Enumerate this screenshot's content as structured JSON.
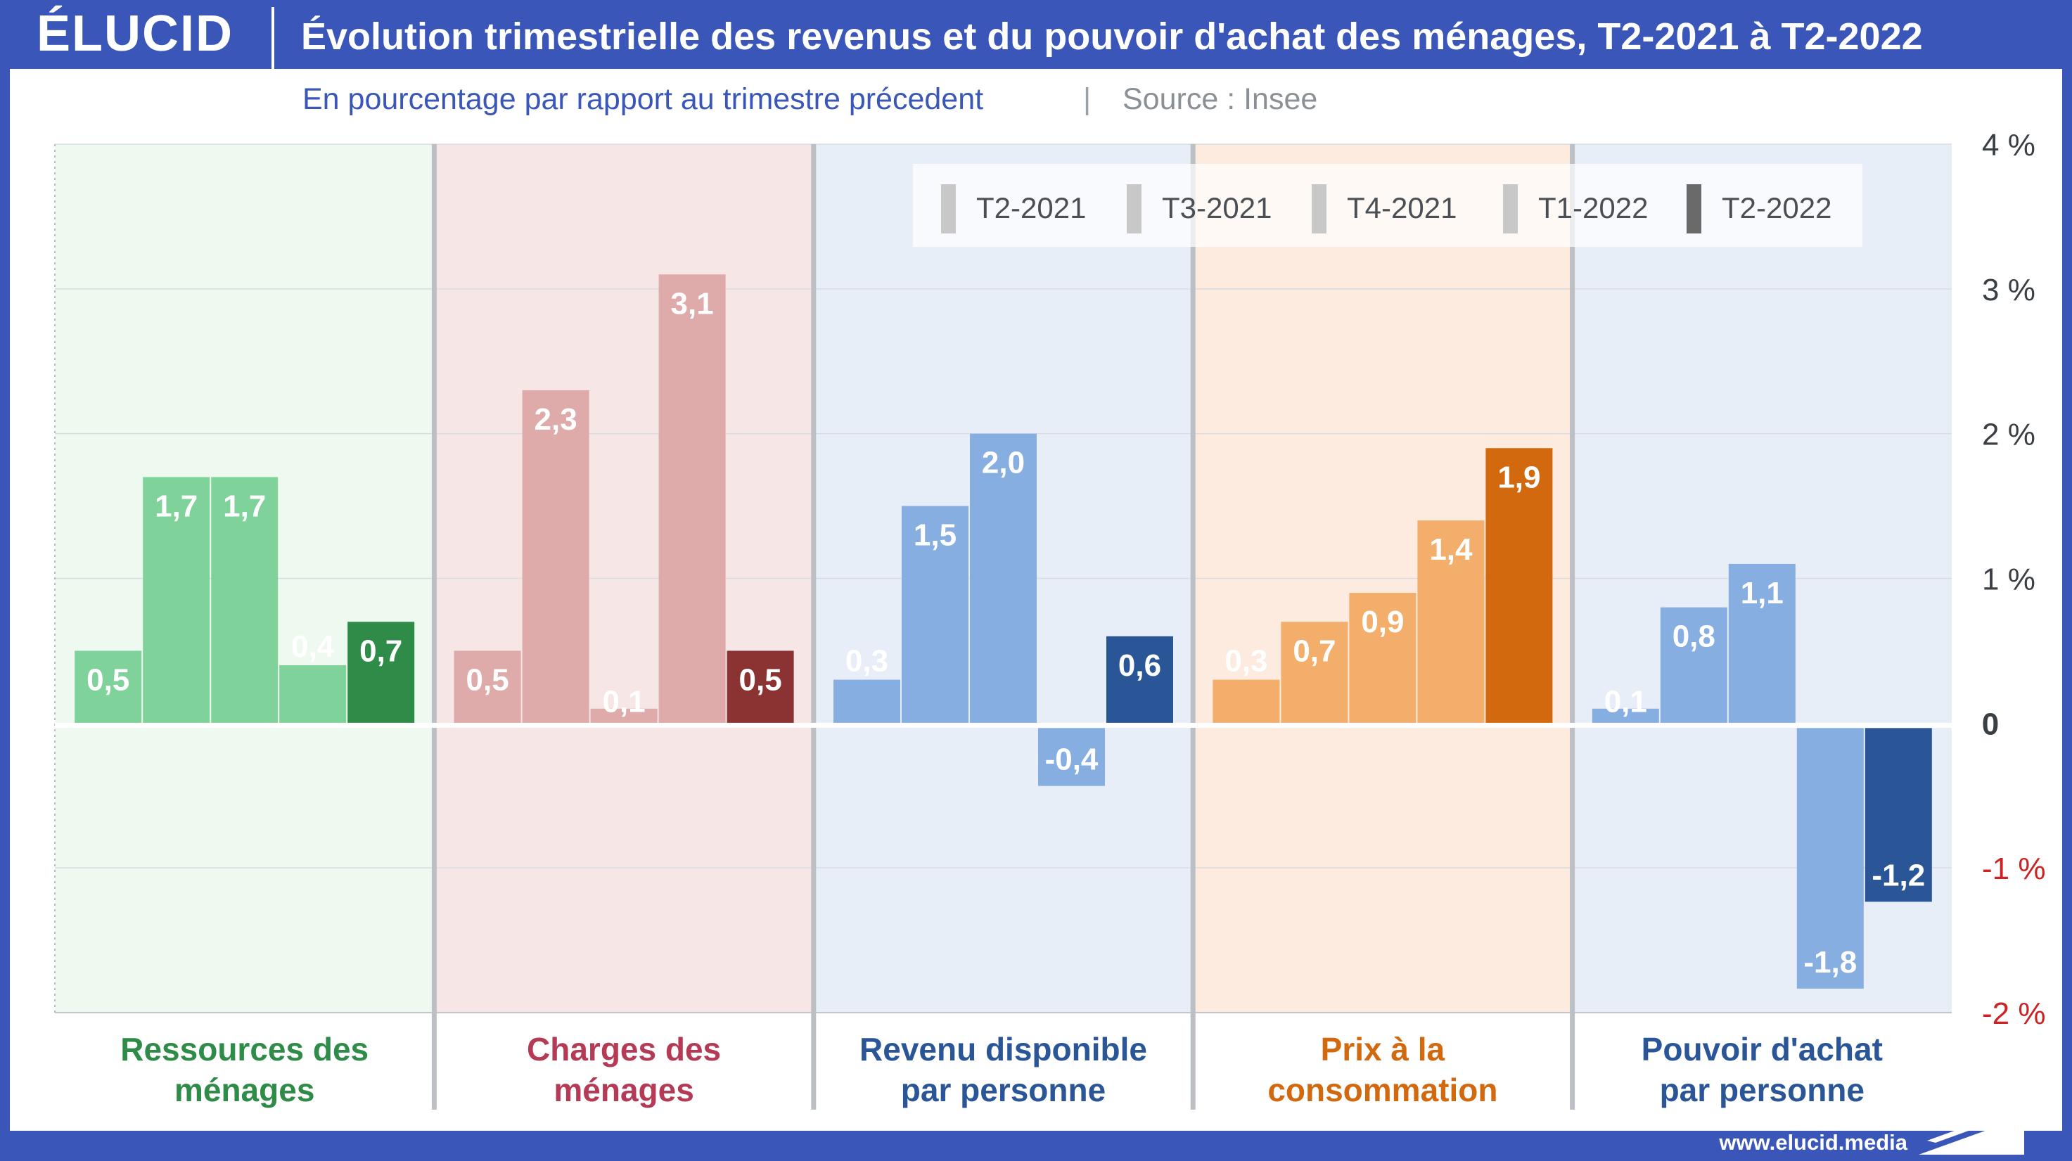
{
  "brand": "ÉLUCID",
  "title": "Évolution trimestrielle des revenus et du pouvoir d'achat des ménages, T2-2021 à T2-2022",
  "subtitle": "En pourcentage par rapport au trimestre précedent",
  "source": "Source : Insee",
  "footer_url": "www.elucid.media",
  "colors": {
    "frame": "#3a56b8",
    "title_text": "#3a56b8",
    "groups": {
      "ressources": {
        "bg": "#eefaf0",
        "light": "#7fd39a",
        "dark": "#2e8b48",
        "label": "#2e8b48"
      },
      "charges": {
        "bg": "#f7e6e6",
        "light": "#deaaaa",
        "dark": "#8b3232",
        "label": "#b53a56"
      },
      "revenu": {
        "bg": "#e8eef8",
        "light": "#86aee0",
        "dark": "#2a5596",
        "label": "#2a5596"
      },
      "prix": {
        "bg": "#fcebde",
        "light": "#f2ae6a",
        "dark": "#d2690f",
        "label": "#d2690f"
      },
      "pouvoir": {
        "bg": "#e8eef8",
        "light": "#86aee0",
        "dark": "#2a5596",
        "label": "#2a5596"
      }
    },
    "negative_tick": "#cc2222"
  },
  "chart_data": {
    "type": "bar",
    "title": "Évolution trimestrielle des revenus et du pouvoir d'achat des ménages, T2-2021 à T2-2022",
    "subtitle": "En pourcentage par rapport au trimestre précedent",
    "ylim": [
      -2,
      4
    ],
    "y_ticks": [
      {
        "value": 4,
        "label": "4 %"
      },
      {
        "value": 3,
        "label": "3 %"
      },
      {
        "value": 2,
        "label": "2 %"
      },
      {
        "value": 1,
        "label": "1 %"
      },
      {
        "value": 0,
        "label": "0"
      },
      {
        "value": -1,
        "label": "-1 %"
      },
      {
        "value": -2,
        "label": "-2 %"
      }
    ],
    "grid": true,
    "legend_position": "top-right",
    "series": [
      {
        "name": "T2-2021"
      },
      {
        "name": "T3-2021"
      },
      {
        "name": "T4-2021"
      },
      {
        "name": "T1-2022"
      },
      {
        "name": "T2-2022"
      }
    ],
    "categories": [
      {
        "key": "ressources",
        "label_lines": [
          "Ressources des",
          "ménages"
        ],
        "values": [
          0.5,
          1.7,
          1.7,
          0.4,
          0.7
        ],
        "labels": [
          "0,5",
          "1,7",
          "1,7",
          "0,4",
          "0,7"
        ]
      },
      {
        "key": "charges",
        "label_lines": [
          "Charges des",
          "ménages"
        ],
        "values": [
          0.5,
          2.3,
          0.1,
          3.1,
          0.5
        ],
        "labels": [
          "0,5",
          "2,3",
          "0,1",
          "3,1",
          "0,5"
        ]
      },
      {
        "key": "revenu",
        "label_lines": [
          "Revenu disponible",
          "par personne"
        ],
        "values": [
          0.3,
          1.5,
          2.0,
          -0.4,
          0.6
        ],
        "labels": [
          "0,3",
          "1,5",
          "2,0",
          "-0,4",
          "0,6"
        ]
      },
      {
        "key": "prix",
        "label_lines": [
          "Prix à la",
          "consommation"
        ],
        "values": [
          0.3,
          0.7,
          0.9,
          1.4,
          1.9
        ],
        "labels": [
          "0,3",
          "0,7",
          "0,9",
          "1,4",
          "1,9"
        ]
      },
      {
        "key": "pouvoir",
        "label_lines": [
          "Pouvoir d'achat",
          "par personne"
        ],
        "values": [
          0.1,
          0.8,
          1.1,
          -1.8,
          -1.2
        ],
        "labels": [
          "0,1",
          "0,8",
          "1,1",
          "-1,8",
          "-1,2"
        ]
      }
    ]
  }
}
